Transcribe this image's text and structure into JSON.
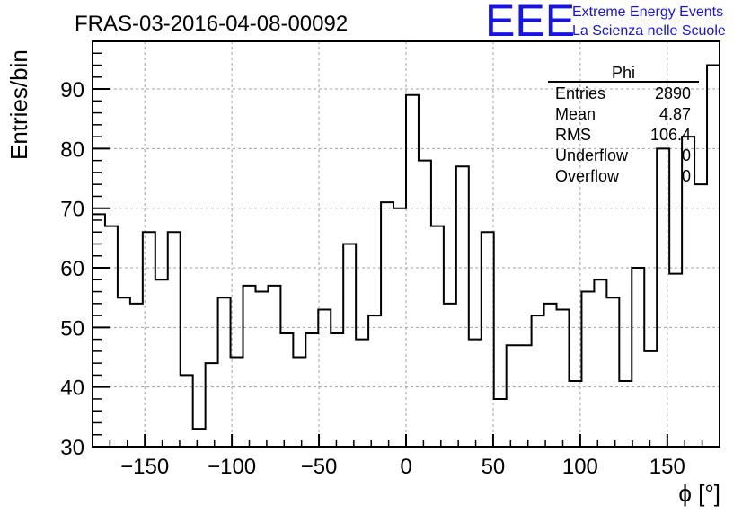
{
  "run_title": "FRAS-03-2016-04-08-00092",
  "logo": {
    "letters": "EEE",
    "line1": "Extreme Energy Events",
    "line2": "La Scienza nelle Scuole",
    "color": "#1414e6"
  },
  "stats_box": {
    "title": "Phi",
    "rows": [
      {
        "label": "Entries",
        "value": "2890"
      },
      {
        "label": "Mean",
        "value": "4.87"
      },
      {
        "label": "RMS",
        "value": "106.4"
      },
      {
        "label": "Underflow",
        "value": "0"
      },
      {
        "label": "Overflow",
        "value": "0"
      }
    ]
  },
  "chart_data": {
    "type": "bar",
    "style": "step-histogram",
    "title": "",
    "xlabel": "ϕ [°]",
    "ylabel": "Entries/bin",
    "xlim": [
      -180,
      180
    ],
    "ylim": [
      30,
      98
    ],
    "bin_width": 7.2,
    "x_ticks": [
      -150,
      -100,
      -50,
      0,
      50,
      100,
      150
    ],
    "x_tick_labels": [
      "−150",
      "−100",
      "−50",
      "0",
      "50",
      "100",
      "150"
    ],
    "y_ticks": [
      30,
      40,
      50,
      60,
      70,
      80,
      90
    ],
    "y_tick_labels": [
      "30",
      "40",
      "50",
      "60",
      "70",
      "80",
      "90"
    ],
    "grid": true,
    "values": [
      69,
      67,
      55,
      54,
      66,
      58,
      66,
      42,
      33,
      44,
      55,
      45,
      57,
      56,
      57,
      49,
      45,
      49,
      53,
      49,
      64,
      48,
      52,
      71,
      70,
      89,
      78,
      67,
      54,
      77,
      48,
      66,
      38,
      47,
      47,
      52,
      54,
      53,
      41,
      56,
      58,
      55,
      41,
      60,
      46,
      80,
      59,
      82,
      74,
      94
    ]
  }
}
